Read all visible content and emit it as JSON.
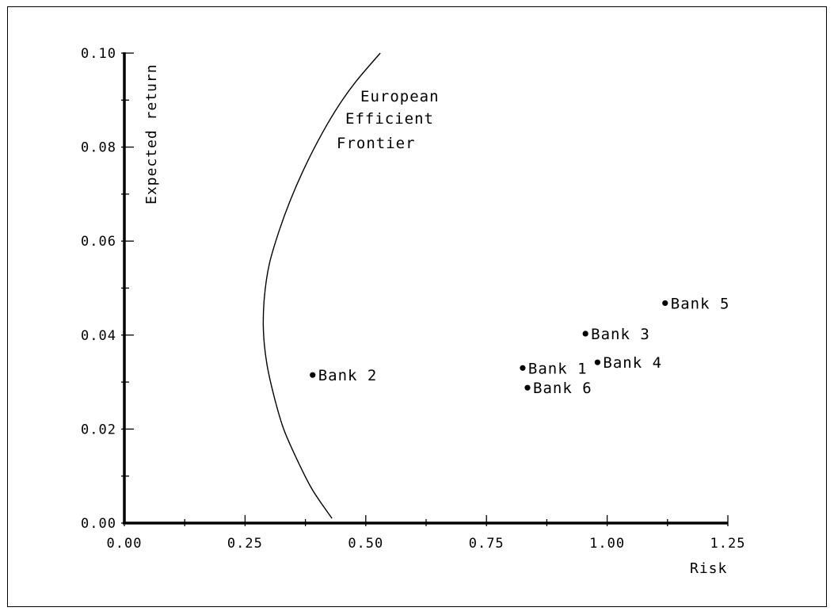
{
  "chart_data": {
    "type": "scatter",
    "xlabel": "Risk",
    "ylabel": "Expected return",
    "xlim": [
      0,
      1.25
    ],
    "ylim": [
      0,
      0.1
    ],
    "x_ticks": [
      "0.00",
      "0.25",
      "0.50",
      "0.75",
      "1.00",
      "1.25"
    ],
    "y_ticks": [
      "0.00",
      "0.02",
      "0.04",
      "0.06",
      "0.08",
      "0.10"
    ],
    "frontier": {
      "label_lines": [
        "European",
        "Efficient",
        "Frontier"
      ],
      "points": [
        [
          0.43,
          0.001
        ],
        [
          0.39,
          0.007
        ],
        [
          0.36,
          0.013
        ],
        [
          0.33,
          0.02
        ],
        [
          0.31,
          0.027
        ],
        [
          0.295,
          0.034
        ],
        [
          0.288,
          0.041
        ],
        [
          0.29,
          0.048
        ],
        [
          0.3,
          0.055
        ],
        [
          0.32,
          0.062
        ],
        [
          0.345,
          0.069
        ],
        [
          0.375,
          0.076
        ],
        [
          0.41,
          0.083
        ],
        [
          0.445,
          0.089
        ],
        [
          0.48,
          0.094
        ],
        [
          0.53,
          0.1
        ]
      ]
    },
    "points": [
      {
        "label": "Bank 1",
        "x": 0.825,
        "y": 0.033
      },
      {
        "label": "Bank 2",
        "x": 0.39,
        "y": 0.0315
      },
      {
        "label": "Bank 3",
        "x": 0.955,
        "y": 0.0403
      },
      {
        "label": "Bank 4",
        "x": 0.98,
        "y": 0.0342
      },
      {
        "label": "Bank 5",
        "x": 1.12,
        "y": 0.0468
      },
      {
        "label": "Bank 6",
        "x": 0.835,
        "y": 0.0288
      }
    ]
  }
}
